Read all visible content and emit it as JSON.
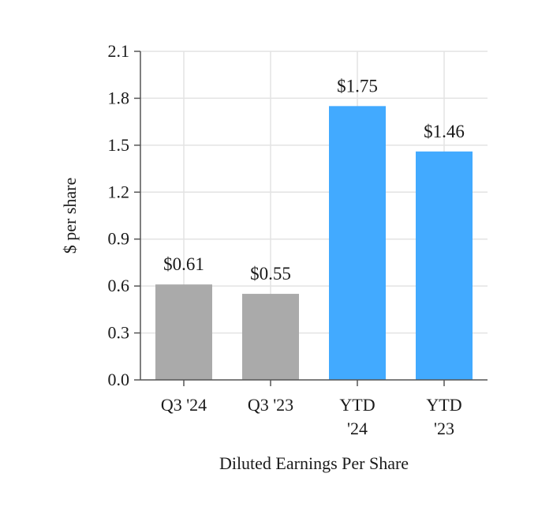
{
  "chart_data": {
    "type": "bar",
    "categories": [
      [
        "Q3 '24"
      ],
      [
        "Q3 '23"
      ],
      [
        "YTD",
        "'24"
      ],
      [
        "YTD",
        "'23"
      ]
    ],
    "values": [
      0.61,
      0.55,
      1.75,
      1.46
    ],
    "data_labels": [
      "$0.61",
      "$0.55",
      "$1.75",
      "$1.46"
    ],
    "bar_colors": [
      "#aaaaaa",
      "#aaaaaa",
      "#42aaff",
      "#42aaff"
    ],
    "xlabel": "Diluted Earnings Per Share",
    "ylabel": "$ per share",
    "ylim": [
      0,
      2.1
    ],
    "yticks": [
      "0.0",
      "0.3",
      "0.6",
      "0.9",
      "1.2",
      "1.5",
      "1.8",
      "2.1"
    ],
    "grid": true
  }
}
